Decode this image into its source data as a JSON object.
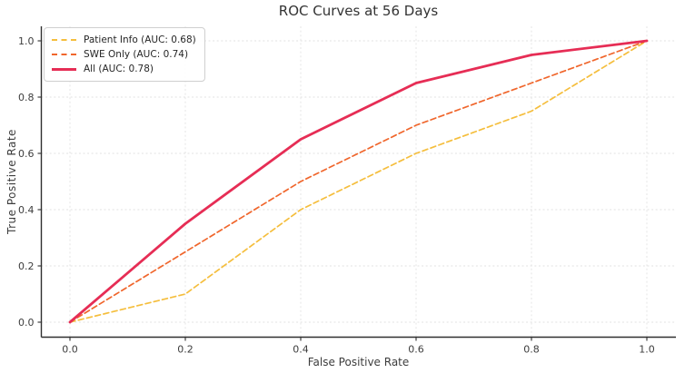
{
  "chart_data": {
    "type": "line",
    "title": "ROC Curves at 56 Days",
    "xlabel": "False Positive Rate",
    "ylabel": "True Positive Rate",
    "xlim": [
      -0.05,
      1.05
    ],
    "ylim": [
      -0.05,
      1.05
    ],
    "grid": true,
    "legend_position": "upper-left",
    "x_ticks": [
      0.0,
      0.2,
      0.4,
      0.6,
      0.8,
      1.0
    ],
    "y_ticks": [
      0.0,
      0.2,
      0.4,
      0.6,
      0.8,
      1.0
    ],
    "x_tick_labels": [
      "0.0",
      "0.2",
      "0.4",
      "0.6",
      "0.8",
      "1.0"
    ],
    "y_tick_labels": [
      "0.0",
      "0.2",
      "0.4",
      "0.6",
      "0.8",
      "1.0"
    ],
    "x": [
      0.0,
      0.2,
      0.4,
      0.6,
      0.8,
      1.0
    ],
    "series": [
      {
        "name": "Patient Info",
        "auc": 0.68,
        "legend_label": "Patient Info (AUC: 0.68)",
        "color": "#F5BE3D",
        "style": "dashed",
        "width": 1.7,
        "values": [
          0.0,
          0.1,
          0.4,
          0.6,
          0.75,
          1.0
        ]
      },
      {
        "name": "SWE Only",
        "auc": 0.74,
        "legend_label": "SWE Only (AUC: 0.74)",
        "color": "#F0662C",
        "style": "dashed",
        "width": 1.7,
        "values": [
          0.0,
          0.25,
          0.5,
          0.7,
          0.85,
          1.0
        ]
      },
      {
        "name": "All",
        "auc": 0.78,
        "legend_label": "All (AUC: 0.78)",
        "color": "#E62D55",
        "style": "solid",
        "width": 2.8,
        "values": [
          0.0,
          0.35,
          0.65,
          0.85,
          0.95,
          1.0
        ]
      }
    ]
  }
}
